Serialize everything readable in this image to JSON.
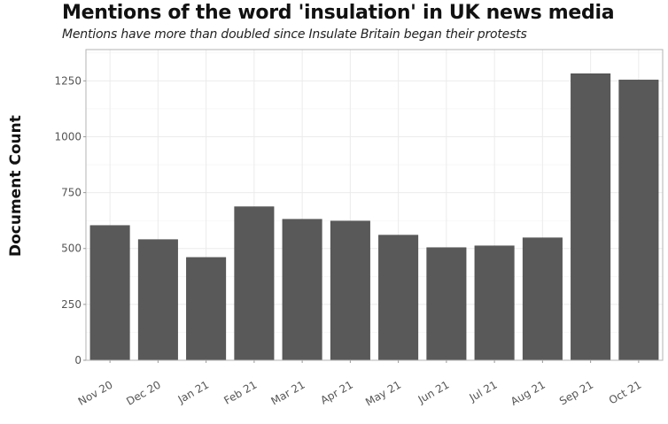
{
  "chart_data": {
    "type": "bar",
    "title": "Mentions of the word 'insulation' in UK news media",
    "subtitle": "Mentions have more than doubled since Insulate Britain began their protests",
    "xlabel": "",
    "ylabel": "Document Count",
    "categories": [
      "Nov 20",
      "Dec 20",
      "Jan 21",
      "Feb 21",
      "Mar 21",
      "Apr 21",
      "May 21",
      "Jun 21",
      "Jul 21",
      "Aug 21",
      "Sep 21",
      "Oct 21"
    ],
    "values": [
      603,
      540,
      460,
      687,
      631,
      623,
      560,
      504,
      512,
      548,
      1282,
      1254
    ],
    "yticks": [
      0,
      250,
      500,
      750,
      1000,
      1250
    ],
    "ylim": [
      0,
      1390
    ],
    "grid": true,
    "legend": "none",
    "bar_color": "#595959"
  }
}
